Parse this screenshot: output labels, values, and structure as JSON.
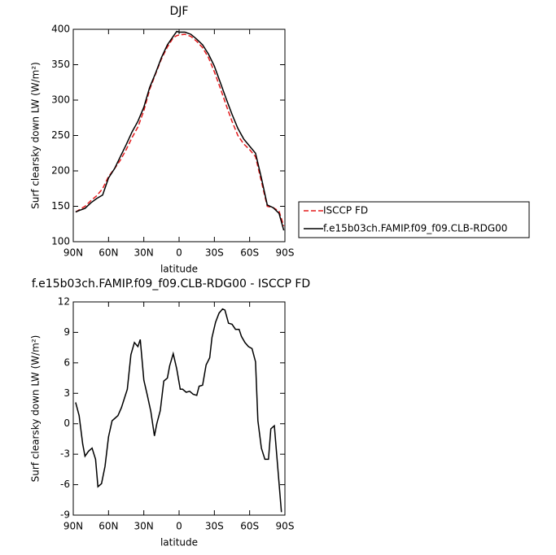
{
  "chart_data": [
    {
      "type": "line",
      "title": "DJF",
      "xlabel": "latitude",
      "ylabel": "Surf clearsky down LW (W/m²)",
      "x": [
        88,
        85,
        80,
        75,
        70,
        65,
        60,
        55,
        50,
        45,
        40,
        35,
        30,
        25,
        20,
        15,
        10,
        5,
        2,
        0,
        -5,
        -10,
        -15,
        -20,
        -25,
        -30,
        -35,
        -40,
        -45,
        -50,
        -55,
        -60,
        -65,
        -70,
        -75,
        -80,
        -85,
        -89
      ],
      "series": [
        {
          "name": "ISCCP FD",
          "color": "#e41a1c",
          "dash": true,
          "values": [
            142,
            145,
            150,
            158,
            165,
            175,
            192,
            203,
            215,
            230,
            247,
            262,
            285,
            315,
            337,
            358,
            375,
            388,
            391,
            392,
            393,
            390,
            383,
            374,
            360,
            340,
            317,
            293,
            270,
            250,
            238,
            230,
            220,
            185,
            150,
            148,
            143,
            122
          ]
        },
        {
          "name": "f.e15b03ch.FAMIP.f09_f09.CLB-RDG00",
          "color": "#000000",
          "dash": false,
          "values": [
            142,
            144,
            147,
            155,
            161,
            166,
            190,
            203,
            220,
            237,
            255,
            270,
            290,
            318,
            338,
            360,
            378,
            390,
            397,
            396,
            396,
            393,
            386,
            378,
            365,
            348,
            325,
            302,
            280,
            260,
            245,
            235,
            225,
            190,
            152,
            148,
            140,
            116
          ]
        }
      ],
      "xlim": [
        90,
        -90
      ],
      "xticks": [
        {
          "value": 90,
          "label": "90N"
        },
        {
          "value": 60,
          "label": "60N"
        },
        {
          "value": 30,
          "label": "30N"
        },
        0,
        {
          "value": -30,
          "label": "30S"
        },
        {
          "value": -60,
          "label": "60S"
        },
        {
          "value": -90,
          "label": "90S"
        }
      ],
      "ylim": [
        100,
        400
      ],
      "yticks": [
        100,
        150,
        200,
        250,
        300,
        350,
        400
      ],
      "legend": "outside-right"
    },
    {
      "type": "line",
      "title": "f.e15b03ch.FAMIP.f09_f09.CLB-RDG00 - ISCCP FD",
      "xlabel": "latitude",
      "ylabel": "Surf clearsky down LW (W/m²)",
      "x": [
        88,
        85,
        82,
        80,
        77,
        74,
        71,
        69,
        66,
        63,
        60,
        57,
        55,
        52,
        49,
        46,
        44,
        41,
        38,
        35,
        33,
        30,
        27,
        24,
        21,
        19,
        16,
        13,
        10,
        8,
        5,
        2,
        -1,
        -3,
        -6,
        -9,
        -12,
        -15,
        -17,
        -20,
        -23,
        -26,
        -28,
        -31,
        -34,
        -37,
        -39,
        -42,
        -45,
        -48,
        -51,
        -53,
        -56,
        -59,
        -62,
        -65,
        -67,
        -70,
        -73,
        -76,
        -78,
        -81,
        -84,
        -87
      ],
      "values": [
        2.1,
        0.8,
        -2,
        -3.2,
        -2.7,
        -2.4,
        -3.5,
        -6.2,
        -5.9,
        -4.2,
        -1.3,
        0.3,
        0.5,
        0.8,
        1.6,
        2.7,
        3.4,
        6.8,
        8,
        7.6,
        8.3,
        4.3,
        2.8,
        1.2,
        -1.2,
        0,
        1.3,
        4.2,
        4.5,
        5.7,
        6.9,
        5.4,
        3.4,
        3.4,
        3.1,
        3.2,
        2.9,
        2.8,
        3.7,
        3.8,
        5.8,
        6.5,
        8.5,
        10,
        10.9,
        11.3,
        11.2,
        9.9,
        9.8,
        9.3,
        9.3,
        8.6,
        8,
        7.6,
        7.4,
        6.1,
        0.3,
        -2.4,
        -3.5,
        -3.5,
        -0.5,
        -0.2,
        -4.4,
        -8.7
      ],
      "color": "#000000",
      "xlim": [
        90,
        -90
      ],
      "xticks": [
        {
          "value": 90,
          "label": "90N"
        },
        {
          "value": 60,
          "label": "60N"
        },
        {
          "value": 30,
          "label": "30N"
        },
        0,
        {
          "value": -30,
          "label": "30S"
        },
        {
          "value": -60,
          "label": "60S"
        },
        {
          "value": -90,
          "label": "90S"
        }
      ],
      "ylim": [
        -9,
        12
      ],
      "yticks": [
        -9,
        -6,
        -3,
        0,
        3,
        6,
        9,
        12
      ]
    }
  ]
}
